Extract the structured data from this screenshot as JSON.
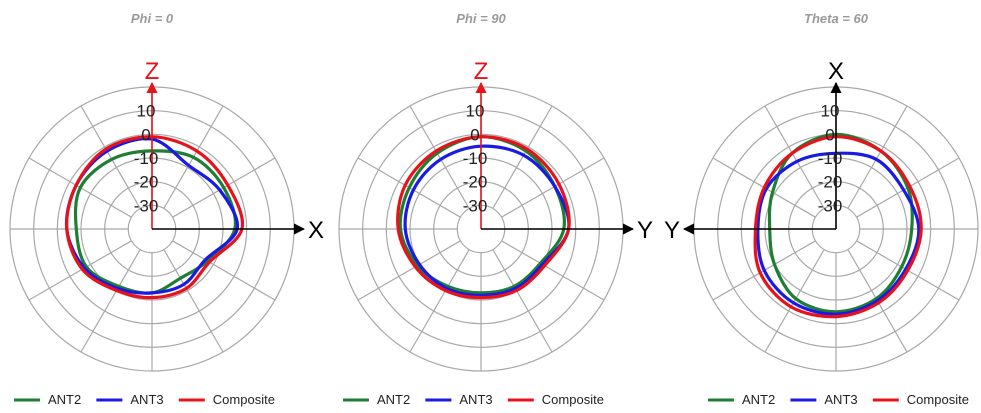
{
  "colors": {
    "ANT2": "#1e7e34",
    "ANT3": "#1a1ae6",
    "Composite": "#e8121b",
    "grid": "#a8a8a8",
    "axis_red": "#e8121b",
    "axis_black": "#000000"
  },
  "chart_data": [
    {
      "type": "polar",
      "title": "Phi = 0",
      "radial_range": [
        -40,
        20
      ],
      "radial_ticks": [
        10,
        0,
        -10,
        -20,
        -30
      ],
      "grid": true,
      "angular_gridlines_deg": 30,
      "axes": {
        "up_label": "Z",
        "right_label": "X",
        "up_color": "red",
        "right_color": "black"
      },
      "legend": {
        "position": "bottom",
        "entries": [
          "ANT2",
          "ANT3",
          "Composite"
        ]
      },
      "angles_deg": [
        0,
        30,
        60,
        90,
        120,
        150,
        180,
        210,
        240,
        270,
        300,
        330
      ],
      "series": [
        {
          "name": "ANT2",
          "values": [
            -7,
            -5,
            -5,
            -5,
            -13,
            -16,
            -13,
            -12,
            -8,
            -8,
            -5,
            -6
          ]
        },
        {
          "name": "ANT3",
          "values": [
            -2,
            -9,
            -7,
            -4,
            -14,
            -13,
            -13,
            -11,
            -7,
            -4,
            -3,
            -2
          ]
        },
        {
          "name": "Composite",
          "values": [
            -1,
            -2,
            -3,
            -2,
            -12,
            -11,
            -11,
            -10,
            -6,
            -4,
            -3,
            -1
          ]
        }
      ]
    },
    {
      "type": "polar",
      "title": "Phi = 90",
      "radial_range": [
        -40,
        20
      ],
      "radial_ticks": [
        10,
        0,
        -10,
        -20,
        -30
      ],
      "grid": true,
      "angular_gridlines_deg": 30,
      "axes": {
        "up_label": "Z",
        "right_label": "Y",
        "up_color": "red",
        "right_color": "black"
      },
      "legend": {
        "position": "bottom",
        "entries": [
          "ANT2",
          "ANT3",
          "Composite"
        ]
      },
      "angles_deg": [
        0,
        30,
        60,
        90,
        120,
        150,
        180,
        210,
        240,
        270,
        300,
        330
      ],
      "series": [
        {
          "name": "ANT2",
          "values": [
            -1,
            -2,
            -4,
            -5,
            -11,
            -12,
            -13,
            -12,
            -9,
            -6,
            -5,
            -3
          ]
        },
        {
          "name": "ANT3",
          "values": [
            -5,
            -4,
            -4,
            -3,
            -10,
            -11,
            -12,
            -11,
            -10,
            -8,
            -7,
            -6
          ]
        },
        {
          "name": "Composite",
          "values": [
            -1,
            -1,
            -2,
            -3,
            -9,
            -10,
            -11,
            -10,
            -8,
            -5,
            -3,
            -2
          ]
        }
      ]
    },
    {
      "type": "polar",
      "title": "Theta = 60",
      "radial_range": [
        -40,
        20
      ],
      "radial_ticks": [
        10,
        0,
        -10,
        -20,
        -30
      ],
      "grid": true,
      "angular_gridlines_deg": 30,
      "axes": {
        "up_label": "X",
        "left_label": "Y",
        "up_color": "black",
        "left_color": "black"
      },
      "legend": {
        "position": "bottom",
        "entries": [
          "ANT2",
          "ANT3",
          "Composite"
        ]
      },
      "angles_deg": [
        0,
        30,
        60,
        90,
        120,
        150,
        180,
        210,
        240,
        270,
        300,
        330
      ],
      "series": [
        {
          "name": "ANT2",
          "values": [
            0,
            -2,
            -5,
            -8,
            -8,
            -6,
            -5,
            -6,
            -10,
            -12,
            -9,
            -3
          ]
        },
        {
          "name": "ANT3",
          "values": [
            -8,
            -6,
            -7,
            -5,
            -6,
            -5,
            -4,
            -4,
            -5,
            -7,
            -6,
            -7
          ]
        },
        {
          "name": "Composite",
          "values": [
            -1,
            -2,
            -4,
            -4,
            -5,
            -4,
            -3,
            -2,
            -3,
            -6,
            -5,
            -3
          ]
        }
      ]
    }
  ]
}
